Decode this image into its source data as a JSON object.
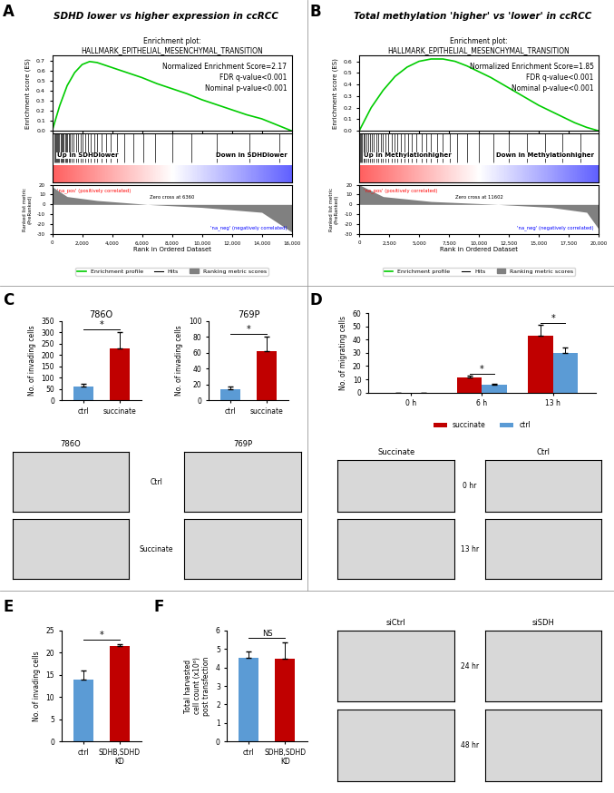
{
  "chart_data": [
    {
      "type": "gsea",
      "title": "SDHD lower vs higher expression in ccRCC",
      "subtitle": "Enrichment plot:\nHALLMARK_EPITHELIAL_MESENCHYMAL_TRANSITION",
      "y_label": "Enrichment score (ES)",
      "x_label": "Rank in Ordered Dataset",
      "y2_label": "Ranked list metric\n(PreRanked)",
      "xlim": [
        0,
        16000
      ],
      "xticks": [
        0,
        {
          "value": 2000,
          "label": "2,000"
        },
        {
          "value": 4000,
          "label": "4,000"
        },
        {
          "value": 6000,
          "label": "6,000"
        },
        {
          "value": 8000,
          "label": "8,000"
        },
        {
          "value": 10000,
          "label": "10,000"
        },
        {
          "value": 12000,
          "label": "12,000"
        },
        {
          "value": 14000,
          "label": "14,000"
        },
        {
          "value": 16000,
          "label": "16,000"
        }
      ],
      "ylim": [
        0,
        0.75
      ],
      "yticks": [
        0.0,
        0.1,
        0.2,
        0.3,
        0.4,
        0.5,
        0.6,
        0.7
      ],
      "y2lim": [
        -30,
        20
      ],
      "y2ticks": [
        -30,
        -20,
        -10,
        0,
        10,
        20
      ],
      "legend": "upper center",
      "series": [
        {
          "name": "Enrichment profile",
          "type": "line",
          "color": "#00cc00",
          "x": [
            0,
            500,
            1000,
            1500,
            2000,
            2500,
            3000,
            4000,
            5000,
            6000,
            7000,
            8000,
            9000,
            10000,
            11000,
            12000,
            13000,
            14000,
            15000,
            16000
          ],
          "values": [
            0,
            0.25,
            0.45,
            0.58,
            0.66,
            0.69,
            0.68,
            0.63,
            0.58,
            0.53,
            0.47,
            0.42,
            0.37,
            0.31,
            0.26,
            0.21,
            0.16,
            0.12,
            0.06,
            0
          ]
        },
        {
          "name": "Hits",
          "type": "hits",
          "color": "#000000",
          "x": [
            50,
            120,
            200,
            260,
            330,
            400,
            480,
            560,
            640,
            700,
            780,
            850,
            930,
            1000,
            1100,
            1200,
            1300,
            1450,
            1600,
            1750,
            1900,
            2050,
            2200,
            2400,
            2600,
            2800,
            3000,
            3300,
            3600,
            3900,
            4300,
            4800,
            5400,
            6100,
            6900,
            8000,
            9300,
            11000,
            13200,
            15200
          ]
        },
        {
          "name": "Ranking metric scores",
          "type": "area",
          "color": "#808080",
          "axis": "y2",
          "x": [
            0,
            1000,
            3000,
            6360,
            10000,
            14000,
            16000
          ],
          "values": [
            18,
            8,
            4,
            0,
            -3,
            -8,
            -28
          ]
        }
      ],
      "annotations": [
        "A",
        "Normalized Enrichment Score=2.17",
        "FDR q-value<0.001",
        "Nominal p-value<0.001",
        "Up in SDHDlower",
        "Down in SDHDlower",
        "'na_pos' (positively correlated)",
        "'na_neg' (negatively correlated)",
        "Zero cross at 6360"
      ]
    },
    {
      "type": "gsea",
      "title": "Total methylation 'higher' vs 'lower' in ccRCC",
      "subtitle": "Enrichment plot:\nHALLMARK_EPITHELIAL_MESENCHYMAL_TRANSITION",
      "y_label": "Enrichment score (ES)",
      "x_label": "Rank in Ordered Dataset",
      "y2_label": "Ranked list metric\n(PreRanked)",
      "xlim": [
        0,
        20000
      ],
      "xticks": [
        0,
        {
          "value": 2500,
          "label": "2,500"
        },
        {
          "value": 5000,
          "label": "5,000"
        },
        {
          "value": 7500,
          "label": "7,500"
        },
        {
          "value": 10000,
          "label": "10,000"
        },
        {
          "value": 12500,
          "label": "12,500"
        },
        {
          "value": 15000,
          "label": "15,000"
        },
        {
          "value": 17500,
          "label": "17,500"
        },
        {
          "value": 20000,
          "label": "20,000"
        }
      ],
      "ylim": [
        0,
        0.65
      ],
      "yticks": [
        0.0,
        0.1,
        0.2,
        0.3,
        0.4,
        0.5,
        0.6
      ],
      "y2lim": [
        -30,
        20
      ],
      "y2ticks": [
        -30,
        -20,
        -10,
        0,
        10,
        20
      ],
      "legend": "upper center",
      "series": [
        {
          "name": "Enrichment profile",
          "type": "line",
          "color": "#00cc00",
          "x": [
            0,
            1000,
            2000,
            3000,
            4000,
            5000,
            6000,
            7000,
            8000,
            9000,
            10000,
            11000,
            12000,
            13000,
            14000,
            15000,
            16000,
            17000,
            18000,
            19000,
            20000
          ],
          "values": [
            0,
            0.2,
            0.35,
            0.47,
            0.55,
            0.6,
            0.62,
            0.62,
            0.6,
            0.56,
            0.51,
            0.46,
            0.4,
            0.34,
            0.28,
            0.22,
            0.17,
            0.12,
            0.07,
            0.03,
            0
          ]
        },
        {
          "name": "Hits",
          "type": "hits",
          "color": "#000000",
          "x": [
            50,
            150,
            250,
            350,
            450,
            600,
            750,
            900,
            1050,
            1200,
            1400,
            1600,
            1800,
            2000,
            2200,
            2450,
            2700,
            2950,
            3200,
            3500,
            3800,
            4100,
            4400,
            4800,
            5200,
            5600,
            6000,
            6500,
            7000,
            7600,
            8200,
            9000,
            10000,
            11200,
            12500,
            14000,
            15500,
            17000,
            18500
          ]
        },
        {
          "name": "Ranking metric scores",
          "type": "area",
          "color": "#808080",
          "axis": "y2",
          "x": [
            0,
            2000,
            6000,
            11602,
            16000,
            19000,
            20000
          ],
          "values": [
            20,
            8,
            3,
            0,
            -3,
            -8,
            -25
          ]
        }
      ],
      "annotations": [
        "B",
        "Normalized Enrichment Score=1.85",
        "FDR q-value<0.001",
        "Nominal p-value<0.001",
        "Up in Methylationhigher",
        "Down in Methylationhigher",
        "'na_pos' (positively correlated)",
        "'na_neg' (negatively correlated)",
        "Zero cross at 11602"
      ]
    },
    {
      "type": "bar",
      "title": "786O",
      "categories": [
        "ctrl",
        "succinate"
      ],
      "values": [
        60,
        230
      ],
      "errors": [
        12,
        70
      ],
      "colors": [
        "#5b9bd5",
        "#c00000"
      ],
      "y_label": "No. of invading cells",
      "ylim": [
        0,
        350
      ],
      "yticks": [
        0,
        50,
        100,
        150,
        200,
        250,
        300,
        350
      ],
      "annotations": [
        "C",
        "*",
        "786O",
        "Ctrl",
        "Succinate"
      ]
    },
    {
      "type": "bar",
      "title": "769P",
      "categories": [
        "ctrl",
        "succinate"
      ],
      "values": [
        14,
        62
      ],
      "errors": [
        4,
        18
      ],
      "colors": [
        "#5b9bd5",
        "#c00000"
      ],
      "y_label": "No. of invading cells",
      "ylim": [
        0,
        100
      ],
      "yticks": [
        0,
        20,
        40,
        60,
        80,
        100
      ],
      "annotations": [
        "*",
        "769P"
      ]
    },
    {
      "type": "grouped_bar",
      "categories": [
        "0 h",
        "6 h",
        "13 h"
      ],
      "y_label": "No. of migrating cells",
      "ylim": [
        0,
        60
      ],
      "yticks": [
        0,
        10,
        20,
        30,
        40,
        50,
        60
      ],
      "legend": "upper center",
      "series": [
        {
          "name": "succinate",
          "color": "#c00000",
          "values": [
            0,
            11.5,
            43
          ],
          "errors": [
            0,
            1.2,
            8
          ]
        },
        {
          "name": "ctrl",
          "color": "#5b9bd5",
          "values": [
            0,
            6.2,
            30
          ],
          "errors": [
            0,
            0.4,
            4
          ]
        }
      ],
      "annotations": [
        "D",
        "*",
        "*",
        "Succinate",
        "Ctrl",
        "0 hr",
        "13 hr"
      ]
    },
    {
      "type": "bar",
      "categories": [
        "ctrl",
        "SDHB,SDHD\nKD"
      ],
      "values": [
        14,
        21.4
      ],
      "errors": [
        2,
        0.6
      ],
      "colors": [
        "#5b9bd5",
        "#c00000"
      ],
      "y_label": "No. of invading cells",
      "ylim": [
        0,
        25
      ],
      "yticks": [
        0,
        5,
        10,
        15,
        20,
        25
      ],
      "annotations": [
        "E",
        "*"
      ]
    },
    {
      "type": "bar",
      "categories": [
        "ctrl",
        "SDHB,SDHD\nKD"
      ],
      "values": [
        4.5,
        4.45
      ],
      "errors": [
        0.35,
        0.9
      ],
      "colors": [
        "#5b9bd5",
        "#c00000"
      ],
      "y_label": "Total harvested\ncell count (x10⁶)\npost transfection",
      "ylim": [
        0,
        6
      ],
      "yticks": [
        0,
        1,
        2,
        3,
        4,
        5,
        6
      ],
      "annotations": [
        "F",
        "NS",
        "siCtrl",
        "siSDH",
        "24 hr",
        "48 hr"
      ]
    }
  ]
}
